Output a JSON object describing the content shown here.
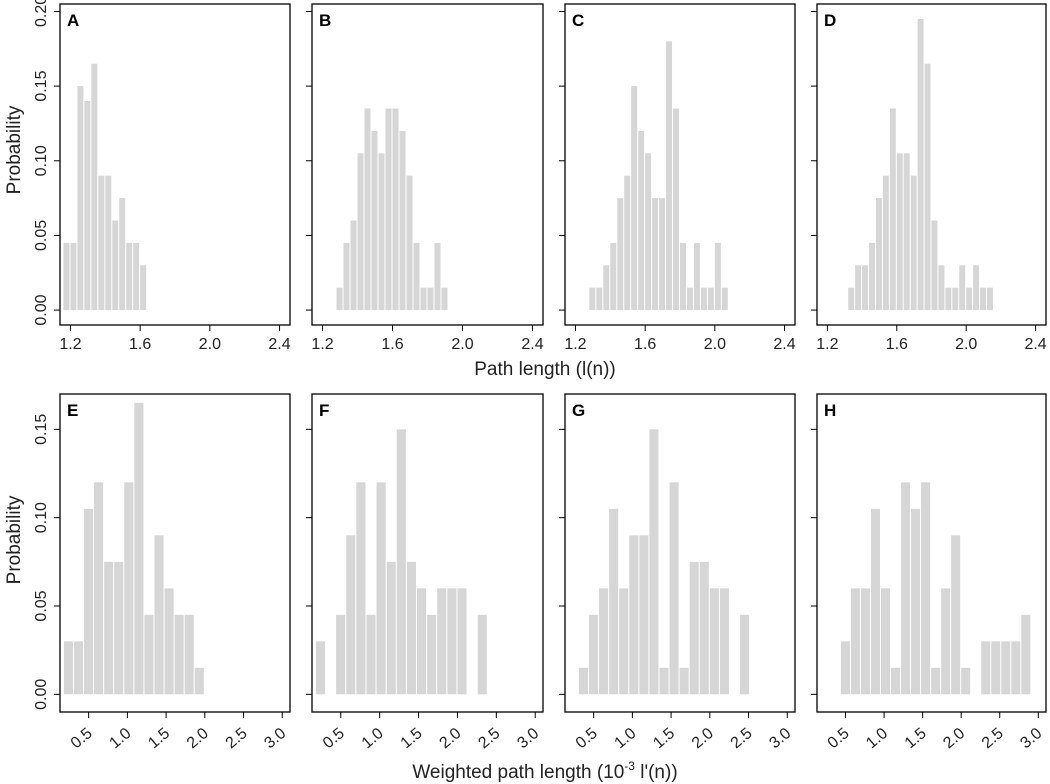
{
  "chart_data": [
    {
      "label": "A",
      "row": 0,
      "type": "bar",
      "xlim": [
        1.14,
        2.46
      ],
      "ylim": [
        -0.01,
        0.205
      ],
      "bin_width": 0.04,
      "xticks": [
        "1.2",
        "1.6",
        "2.0",
        "2.4"
      ],
      "bars": [
        {
          "x": 1.16,
          "y": 0.045
        },
        {
          "x": 1.2,
          "y": 0.045
        },
        {
          "x": 1.24,
          "y": 0.15
        },
        {
          "x": 1.28,
          "y": 0.14
        },
        {
          "x": 1.32,
          "y": 0.165
        },
        {
          "x": 1.36,
          "y": 0.09
        },
        {
          "x": 1.4,
          "y": 0.09
        },
        {
          "x": 1.44,
          "y": 0.06
        },
        {
          "x": 1.48,
          "y": 0.075
        },
        {
          "x": 1.52,
          "y": 0.045
        },
        {
          "x": 1.56,
          "y": 0.045
        },
        {
          "x": 1.6,
          "y": 0.03
        }
      ]
    },
    {
      "label": "B",
      "row": 0,
      "type": "bar",
      "xlim": [
        1.14,
        2.46
      ],
      "ylim": [
        -0.01,
        0.205
      ],
      "bin_width": 0.04,
      "xticks": [
        "1.2",
        "1.6",
        "2.0",
        "2.4"
      ],
      "bars": [
        {
          "x": 1.28,
          "y": 0.015
        },
        {
          "x": 1.32,
          "y": 0.045
        },
        {
          "x": 1.36,
          "y": 0.06
        },
        {
          "x": 1.4,
          "y": 0.105
        },
        {
          "x": 1.44,
          "y": 0.135
        },
        {
          "x": 1.48,
          "y": 0.12
        },
        {
          "x": 1.52,
          "y": 0.105
        },
        {
          "x": 1.56,
          "y": 0.135
        },
        {
          "x": 1.6,
          "y": 0.135
        },
        {
          "x": 1.64,
          "y": 0.12
        },
        {
          "x": 1.68,
          "y": 0.09
        },
        {
          "x": 1.72,
          "y": 0.045
        },
        {
          "x": 1.76,
          "y": 0.015
        },
        {
          "x": 1.8,
          "y": 0.015
        },
        {
          "x": 1.84,
          "y": 0.045
        },
        {
          "x": 1.88,
          "y": 0.015
        }
      ]
    },
    {
      "label": "C",
      "row": 0,
      "type": "bar",
      "xlim": [
        1.14,
        2.46
      ],
      "ylim": [
        -0.01,
        0.205
      ],
      "bin_width": 0.04,
      "xticks": [
        "1.2",
        "1.6",
        "2.0",
        "2.4"
      ],
      "bars": [
        {
          "x": 1.28,
          "y": 0.015
        },
        {
          "x": 1.32,
          "y": 0.015
        },
        {
          "x": 1.36,
          "y": 0.03
        },
        {
          "x": 1.4,
          "y": 0.045
        },
        {
          "x": 1.44,
          "y": 0.075
        },
        {
          "x": 1.48,
          "y": 0.09
        },
        {
          "x": 1.52,
          "y": 0.15
        },
        {
          "x": 1.56,
          "y": 0.12
        },
        {
          "x": 1.6,
          "y": 0.105
        },
        {
          "x": 1.64,
          "y": 0.075
        },
        {
          "x": 1.68,
          "y": 0.075
        },
        {
          "x": 1.72,
          "y": 0.18
        },
        {
          "x": 1.76,
          "y": 0.135
        },
        {
          "x": 1.8,
          "y": 0.045
        },
        {
          "x": 1.84,
          "y": 0.015
        },
        {
          "x": 1.88,
          "y": 0.045
        },
        {
          "x": 1.92,
          "y": 0.015
        },
        {
          "x": 1.96,
          "y": 0.015
        },
        {
          "x": 2.0,
          "y": 0.045
        },
        {
          "x": 2.04,
          "y": 0.015
        }
      ]
    },
    {
      "label": "D",
      "row": 0,
      "type": "bar",
      "xlim": [
        1.14,
        2.46
      ],
      "ylim": [
        -0.01,
        0.205
      ],
      "bin_width": 0.04,
      "xticks": [
        "1.2",
        "1.6",
        "2.0",
        "2.4"
      ],
      "bars": [
        {
          "x": 1.32,
          "y": 0.015
        },
        {
          "x": 1.36,
          "y": 0.03
        },
        {
          "x": 1.4,
          "y": 0.03
        },
        {
          "x": 1.44,
          "y": 0.045
        },
        {
          "x": 1.48,
          "y": 0.075
        },
        {
          "x": 1.52,
          "y": 0.09
        },
        {
          "x": 1.56,
          "y": 0.135
        },
        {
          "x": 1.6,
          "y": 0.105
        },
        {
          "x": 1.64,
          "y": 0.105
        },
        {
          "x": 1.68,
          "y": 0.09
        },
        {
          "x": 1.72,
          "y": 0.195
        },
        {
          "x": 1.76,
          "y": 0.165
        },
        {
          "x": 1.8,
          "y": 0.06
        },
        {
          "x": 1.84,
          "y": 0.03
        },
        {
          "x": 1.88,
          "y": 0.015
        },
        {
          "x": 1.92,
          "y": 0.015
        },
        {
          "x": 1.96,
          "y": 0.03
        },
        {
          "x": 2.0,
          "y": 0.015
        },
        {
          "x": 2.04,
          "y": 0.03
        },
        {
          "x": 2.08,
          "y": 0.015
        },
        {
          "x": 2.12,
          "y": 0.015
        }
      ]
    },
    {
      "label": "E",
      "row": 1,
      "type": "bar",
      "xlim": [
        0.13,
        3.1
      ],
      "ylim": [
        -0.01,
        0.17
      ],
      "bin_width": 0.13,
      "xticks": [
        "0.5",
        "1.0",
        "1.5",
        "2.0",
        "2.5",
        "3.0"
      ],
      "bars": [
        {
          "x": 0.18,
          "y": 0.03
        },
        {
          "x": 0.31,
          "y": 0.03
        },
        {
          "x": 0.44,
          "y": 0.105
        },
        {
          "x": 0.57,
          "y": 0.12
        },
        {
          "x": 0.7,
          "y": 0.075
        },
        {
          "x": 0.83,
          "y": 0.075
        },
        {
          "x": 0.96,
          "y": 0.12
        },
        {
          "x": 1.09,
          "y": 0.165
        },
        {
          "x": 1.22,
          "y": 0.045
        },
        {
          "x": 1.35,
          "y": 0.09
        },
        {
          "x": 1.48,
          "y": 0.06
        },
        {
          "x": 1.61,
          "y": 0.045
        },
        {
          "x": 1.74,
          "y": 0.045
        },
        {
          "x": 1.87,
          "y": 0.015
        }
      ]
    },
    {
      "label": "F",
      "row": 1,
      "type": "bar",
      "xlim": [
        0.13,
        3.1
      ],
      "ylim": [
        -0.01,
        0.17
      ],
      "bin_width": 0.13,
      "xticks": [
        "0.5",
        "1.0",
        "1.5",
        "2.0",
        "2.5",
        "3.0"
      ],
      "bars": [
        {
          "x": 0.18,
          "y": 0.03
        },
        {
          "x": 0.44,
          "y": 0.045
        },
        {
          "x": 0.57,
          "y": 0.09
        },
        {
          "x": 0.7,
          "y": 0.12
        },
        {
          "x": 0.83,
          "y": 0.045
        },
        {
          "x": 0.96,
          "y": 0.12
        },
        {
          "x": 1.09,
          "y": 0.075
        },
        {
          "x": 1.22,
          "y": 0.15
        },
        {
          "x": 1.35,
          "y": 0.075
        },
        {
          "x": 1.48,
          "y": 0.06
        },
        {
          "x": 1.61,
          "y": 0.045
        },
        {
          "x": 1.74,
          "y": 0.06
        },
        {
          "x": 1.87,
          "y": 0.06
        },
        {
          "x": 2.0,
          "y": 0.06
        },
        {
          "x": 2.26,
          "y": 0.045
        }
      ]
    },
    {
      "label": "G",
      "row": 1,
      "type": "bar",
      "xlim": [
        0.13,
        3.1
      ],
      "ylim": [
        -0.01,
        0.17
      ],
      "bin_width": 0.13,
      "xticks": [
        "0.5",
        "1.0",
        "1.5",
        "2.0",
        "2.5",
        "3.0"
      ],
      "bars": [
        {
          "x": 0.31,
          "y": 0.015
        },
        {
          "x": 0.44,
          "y": 0.045
        },
        {
          "x": 0.57,
          "y": 0.06
        },
        {
          "x": 0.7,
          "y": 0.105
        },
        {
          "x": 0.83,
          "y": 0.06
        },
        {
          "x": 0.96,
          "y": 0.09
        },
        {
          "x": 1.09,
          "y": 0.09
        },
        {
          "x": 1.22,
          "y": 0.15
        },
        {
          "x": 1.35,
          "y": 0.015
        },
        {
          "x": 1.48,
          "y": 0.12
        },
        {
          "x": 1.61,
          "y": 0.015
        },
        {
          "x": 1.74,
          "y": 0.075
        },
        {
          "x": 1.87,
          "y": 0.075
        },
        {
          "x": 2.0,
          "y": 0.06
        },
        {
          "x": 2.13,
          "y": 0.06
        },
        {
          "x": 2.39,
          "y": 0.045
        }
      ]
    },
    {
      "label": "H",
      "row": 1,
      "type": "bar",
      "xlim": [
        0.13,
        3.1
      ],
      "ylim": [
        -0.01,
        0.17
      ],
      "bin_width": 0.13,
      "xticks": [
        "0.5",
        "1.0",
        "1.5",
        "2.0",
        "2.5",
        "3.0"
      ],
      "bars": [
        {
          "x": 0.44,
          "y": 0.03
        },
        {
          "x": 0.57,
          "y": 0.06
        },
        {
          "x": 0.7,
          "y": 0.06
        },
        {
          "x": 0.83,
          "y": 0.105
        },
        {
          "x": 0.96,
          "y": 0.06
        },
        {
          "x": 1.09,
          "y": 0.015
        },
        {
          "x": 1.22,
          "y": 0.12
        },
        {
          "x": 1.35,
          "y": 0.105
        },
        {
          "x": 1.48,
          "y": 0.12
        },
        {
          "x": 1.61,
          "y": 0.015
        },
        {
          "x": 1.74,
          "y": 0.06
        },
        {
          "x": 1.87,
          "y": 0.09
        },
        {
          "x": 2.0,
          "y": 0.015
        },
        {
          "x": 2.26,
          "y": 0.03
        },
        {
          "x": 2.39,
          "y": 0.03
        },
        {
          "x": 2.52,
          "y": 0.03
        },
        {
          "x": 2.65,
          "y": 0.03
        },
        {
          "x": 2.78,
          "y": 0.045
        }
      ]
    }
  ],
  "axes": {
    "row1_yticks": [
      "0.00",
      "0.05",
      "0.10",
      "0.15",
      "0.20"
    ],
    "row1_yvals": [
      0,
      0.05,
      0.1,
      0.15,
      0.2
    ],
    "row2_yticks": [
      "0.00",
      "0.05",
      "0.10",
      "0.15"
    ],
    "row2_yvals": [
      0,
      0.05,
      0.1,
      0.15
    ],
    "row1_xvals": [
      1.2,
      1.6,
      2.0,
      2.4
    ],
    "row2_xvals": [
      0.5,
      1.0,
      1.5,
      2.0,
      2.5,
      3.0
    ],
    "ylabel": "Probability",
    "row1_xlabel": "Path length (l(n))",
    "row2_xlabel_main": "Weighted path length (10",
    "row2_xlabel_sup": "-3",
    "row2_xlabel_tail": " l'(n))"
  },
  "colors": {
    "bar": "#d6d6d6",
    "frame": "#000000"
  }
}
